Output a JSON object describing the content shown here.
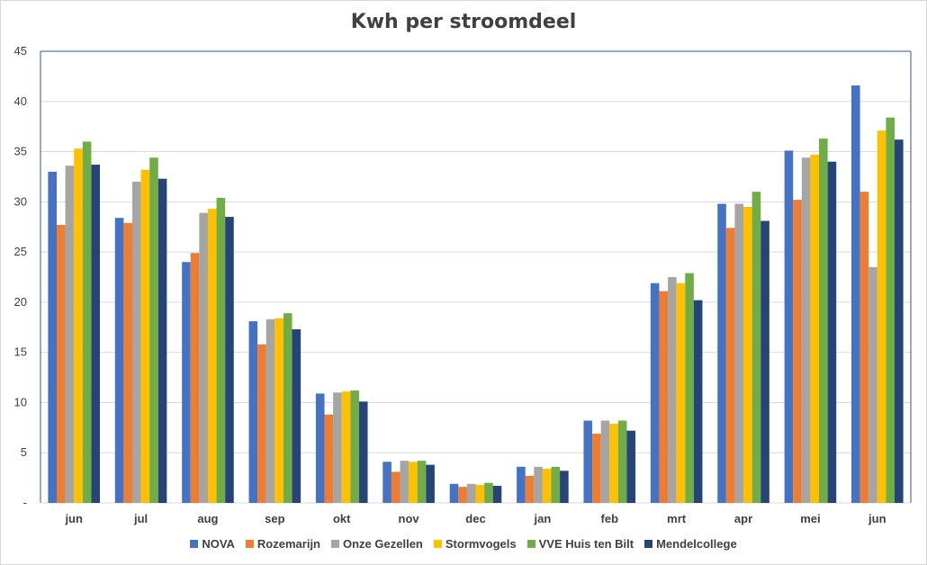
{
  "chart_data": {
    "type": "bar",
    "title": "Kwh per stroomdeel",
    "xlabel": "",
    "ylabel": "",
    "ylim": [
      0,
      45
    ],
    "yticks": [
      "-",
      "5",
      "10",
      "15",
      "20",
      "25",
      "30",
      "35",
      "40",
      "45"
    ],
    "grid": true,
    "legend_position": "bottom",
    "categories": [
      "jun",
      "jul",
      "aug",
      "sep",
      "okt",
      "nov",
      "dec",
      "jan",
      "feb",
      "mrt",
      "apr",
      "mei",
      "jun"
    ],
    "series": [
      {
        "name": "NOVA",
        "color": "#4472C4",
        "values": [
          33.0,
          28.4,
          24.0,
          18.1,
          10.9,
          4.1,
          1.9,
          3.6,
          8.2,
          21.9,
          29.8,
          35.1,
          41.6
        ]
      },
      {
        "name": "Rozemarijn",
        "color": "#ED7D31",
        "values": [
          27.7,
          27.9,
          24.9,
          15.8,
          8.8,
          3.1,
          1.6,
          2.7,
          6.9,
          21.1,
          27.4,
          30.2,
          31.0
        ]
      },
      {
        "name": "Onze Gezellen",
        "color": "#A5A5A5",
        "values": [
          33.6,
          32.0,
          28.9,
          18.3,
          11.0,
          4.2,
          1.9,
          3.6,
          8.2,
          22.5,
          29.8,
          34.4,
          23.5
        ]
      },
      {
        "name": "Stormvogels",
        "color": "#FFC000",
        "values": [
          35.3,
          33.2,
          29.3,
          18.4,
          11.1,
          4.1,
          1.8,
          3.4,
          7.9,
          21.9,
          29.5,
          34.7,
          37.1
        ]
      },
      {
        "name": "VVE Huis ten Bilt",
        "color": "#70AD47",
        "values": [
          36.0,
          34.4,
          30.4,
          18.9,
          11.2,
          4.2,
          2.0,
          3.6,
          8.2,
          22.9,
          31.0,
          36.3,
          38.4
        ]
      },
      {
        "name": "Mendelcollege",
        "color": "#264478",
        "values": [
          33.7,
          32.3,
          28.5,
          17.3,
          10.1,
          3.8,
          1.7,
          3.2,
          7.2,
          20.2,
          28.1,
          34.0,
          36.2
        ]
      }
    ]
  }
}
